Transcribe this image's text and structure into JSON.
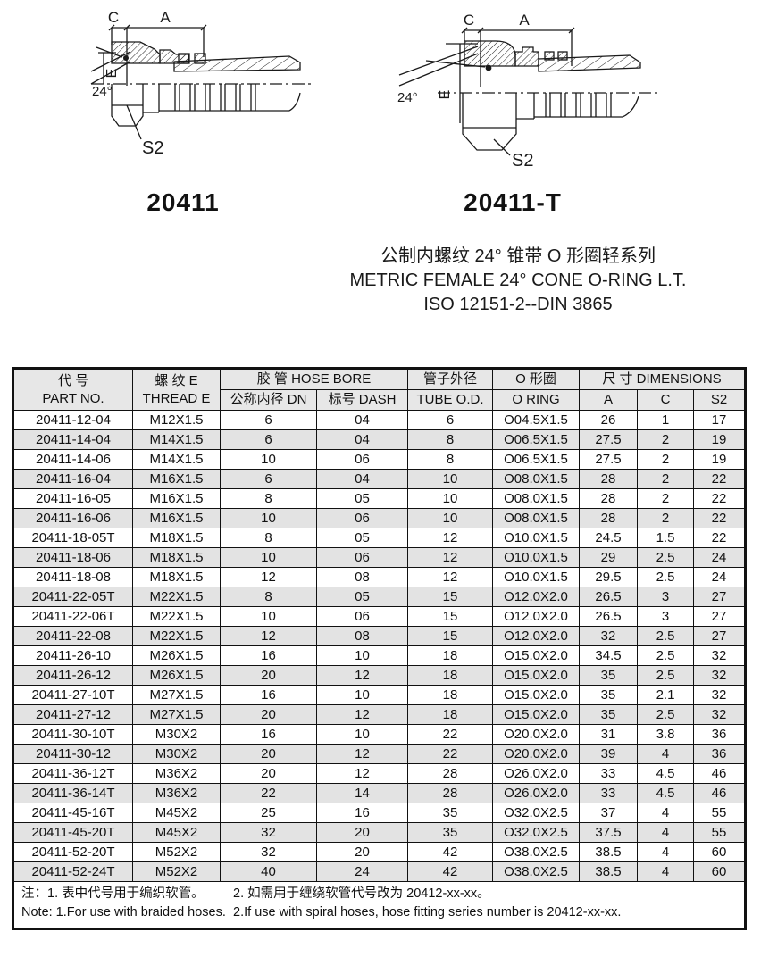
{
  "figures": {
    "left": {
      "title": "20411",
      "labels": {
        "c": "C",
        "a": "A",
        "angle": "24°",
        "e": "E",
        "s2": "S2"
      }
    },
    "right": {
      "title": "20411-T",
      "labels": {
        "c": "C",
        "a": "A",
        "angle": "24°",
        "e": "E",
        "s2": "S2"
      }
    }
  },
  "heading": {
    "line1_cn": "公制内螺纹 24° 锥带 O 形圈轻系列",
    "line2_en": "METRIC FEMALE 24° CONE O-RING L.T.",
    "line3_std": "ISO 12151-2--DIN 3865"
  },
  "table": {
    "header": {
      "part_no_cn": "代 号",
      "part_no_en": "PART NO.",
      "thread_cn": "螺 纹 E",
      "thread_en": "THREAD E",
      "hose_bore_group": "胶 管 HOSE BORE",
      "dn": "公称内径 DN",
      "dash": "标号 DASH",
      "tube_od_cn": "管子外径",
      "tube_od_en": "TUBE O.D.",
      "oring_cn": "O 形圈",
      "oring_en": "O RING",
      "dimensions_group": "尺 寸 DIMENSIONS",
      "a": "A",
      "c": "C",
      "s2": "S2"
    },
    "rows": [
      [
        "20411-12-04",
        "M12X1.5",
        "6",
        "04",
        "6",
        "O04.5X1.5",
        "26",
        "1",
        "17"
      ],
      [
        "20411-14-04",
        "M14X1.5",
        "6",
        "04",
        "8",
        "O06.5X1.5",
        "27.5",
        "2",
        "19"
      ],
      [
        "20411-14-06",
        "M14X1.5",
        "10",
        "06",
        "8",
        "O06.5X1.5",
        "27.5",
        "2",
        "19"
      ],
      [
        "20411-16-04",
        "M16X1.5",
        "6",
        "04",
        "10",
        "O08.0X1.5",
        "28",
        "2",
        "22"
      ],
      [
        "20411-16-05",
        "M16X1.5",
        "8",
        "05",
        "10",
        "O08.0X1.5",
        "28",
        "2",
        "22"
      ],
      [
        "20411-16-06",
        "M16X1.5",
        "10",
        "06",
        "10",
        "O08.0X1.5",
        "28",
        "2",
        "22"
      ],
      [
        "20411-18-05T",
        "M18X1.5",
        "8",
        "05",
        "12",
        "O10.0X1.5",
        "24.5",
        "1.5",
        "22"
      ],
      [
        "20411-18-06",
        "M18X1.5",
        "10",
        "06",
        "12",
        "O10.0X1.5",
        "29",
        "2.5",
        "24"
      ],
      [
        "20411-18-08",
        "M18X1.5",
        "12",
        "08",
        "12",
        "O10.0X1.5",
        "29.5",
        "2.5",
        "24"
      ],
      [
        "20411-22-05T",
        "M22X1.5",
        "8",
        "05",
        "15",
        "O12.0X2.0",
        "26.5",
        "3",
        "27"
      ],
      [
        "20411-22-06T",
        "M22X1.5",
        "10",
        "06",
        "15",
        "O12.0X2.0",
        "26.5",
        "3",
        "27"
      ],
      [
        "20411-22-08",
        "M22X1.5",
        "12",
        "08",
        "15",
        "O12.0X2.0",
        "32",
        "2.5",
        "27"
      ],
      [
        "20411-26-10",
        "M26X1.5",
        "16",
        "10",
        "18",
        "O15.0X2.0",
        "34.5",
        "2.5",
        "32"
      ],
      [
        "20411-26-12",
        "M26X1.5",
        "20",
        "12",
        "18",
        "O15.0X2.0",
        "35",
        "2.5",
        "32"
      ],
      [
        "20411-27-10T",
        "M27X1.5",
        "16",
        "10",
        "18",
        "O15.0X2.0",
        "35",
        "2.1",
        "32"
      ],
      [
        "20411-27-12",
        "M27X1.5",
        "20",
        "12",
        "18",
        "O15.0X2.0",
        "35",
        "2.5",
        "32"
      ],
      [
        "20411-30-10T",
        "M30X2",
        "16",
        "10",
        "22",
        "O20.0X2.0",
        "31",
        "3.8",
        "36"
      ],
      [
        "20411-30-12",
        "M30X2",
        "20",
        "12",
        "22",
        "O20.0X2.0",
        "39",
        "4",
        "36"
      ],
      [
        "20411-36-12T",
        "M36X2",
        "20",
        "12",
        "28",
        "O26.0X2.0",
        "33",
        "4.5",
        "46"
      ],
      [
        "20411-36-14T",
        "M36X2",
        "22",
        "14",
        "28",
        "O26.0X2.0",
        "33",
        "4.5",
        "46"
      ],
      [
        "20411-45-16T",
        "M45X2",
        "25",
        "16",
        "35",
        "O32.0X2.5",
        "37",
        "4",
        "55"
      ],
      [
        "20411-45-20T",
        "M45X2",
        "32",
        "20",
        "35",
        "O32.0X2.5",
        "37.5",
        "4",
        "55"
      ],
      [
        "20411-52-20T",
        "M52X2",
        "32",
        "20",
        "42",
        "O38.0X2.5",
        "38.5",
        "4",
        "60"
      ],
      [
        "20411-52-24T",
        "M52X2",
        "40",
        "24",
        "42",
        "O38.0X2.5",
        "38.5",
        "4",
        "60"
      ]
    ],
    "notes": {
      "cn_1": "注：1. 表中代号用于编织软管。",
      "cn_2": "2. 如需用于缠绕软管代号改为 20412-xx-xx。",
      "en_1": "Note: 1.For use with braided hoses.",
      "en_2": "2.If use with spiral hoses, hose fitting series number is 20412-xx-xx."
    }
  },
  "colors": {
    "line": "#1a1a1a",
    "row_shade": "#e3e3e3",
    "header_shade": "#e7e7e7"
  }
}
